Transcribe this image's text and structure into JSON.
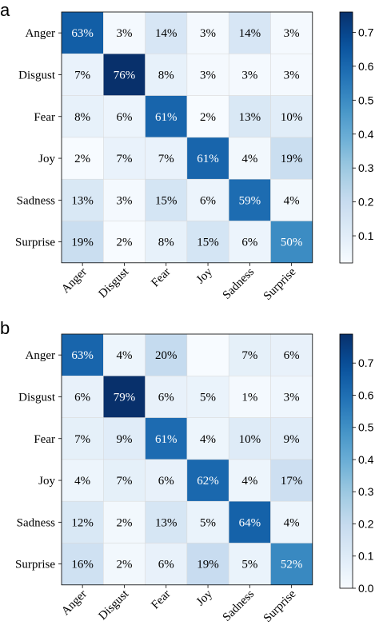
{
  "chart_data": [
    {
      "type": "heatmap",
      "panel_label": "a",
      "row_labels": [
        "Anger",
        "Disgust",
        "Fear",
        "Joy",
        "Sadness",
        "Surprise"
      ],
      "col_labels": [
        "Anger",
        "Disgust",
        "Fear",
        "Joy",
        "Sadness",
        "Surprise"
      ],
      "values": [
        [
          0.63,
          0.03,
          0.14,
          0.03,
          0.14,
          0.03
        ],
        [
          0.07,
          0.76,
          0.08,
          0.03,
          0.03,
          0.03
        ],
        [
          0.08,
          0.06,
          0.61,
          0.02,
          0.13,
          0.1
        ],
        [
          0.02,
          0.07,
          0.07,
          0.61,
          0.04,
          0.19
        ],
        [
          0.13,
          0.03,
          0.15,
          0.06,
          0.59,
          0.04
        ],
        [
          0.19,
          0.02,
          0.08,
          0.15,
          0.06,
          0.5
        ]
      ],
      "cell_labels": [
        [
          "63%",
          "3%",
          "14%",
          "3%",
          "14%",
          "3%"
        ],
        [
          "7%",
          "76%",
          "8%",
          "3%",
          "3%",
          "3%"
        ],
        [
          "8%",
          "6%",
          "61%",
          "2%",
          "13%",
          "10%"
        ],
        [
          "2%",
          "7%",
          "7%",
          "61%",
          "4%",
          "19%"
        ],
        [
          "13%",
          "3%",
          "15%",
          "6%",
          "59%",
          "4%"
        ],
        [
          "19%",
          "2%",
          "8%",
          "15%",
          "6%",
          "50%"
        ]
      ],
      "colorbar": {
        "min": 0.02,
        "max": 0.76,
        "ticks": [
          "0.1",
          "0.2",
          "0.3",
          "0.4",
          "0.5",
          "0.6",
          "0.7"
        ],
        "tick_values": [
          0.1,
          0.2,
          0.3,
          0.4,
          0.5,
          0.6,
          0.7
        ]
      },
      "colormap": "Blues"
    },
    {
      "type": "heatmap",
      "panel_label": "b",
      "row_labels": [
        "Anger",
        "Disgust",
        "Fear",
        "Joy",
        "Sadness",
        "Surprise"
      ],
      "col_labels": [
        "Anger",
        "Disgust",
        "Fear",
        "Joy",
        "Sadness",
        "Surprise"
      ],
      "values": [
        [
          0.63,
          0.04,
          0.2,
          0.0,
          0.07,
          0.06
        ],
        [
          0.06,
          0.79,
          0.06,
          0.05,
          0.01,
          0.03
        ],
        [
          0.07,
          0.09,
          0.61,
          0.04,
          0.1,
          0.09
        ],
        [
          0.04,
          0.07,
          0.06,
          0.62,
          0.04,
          0.17
        ],
        [
          0.12,
          0.02,
          0.13,
          0.05,
          0.64,
          0.04
        ],
        [
          0.16,
          0.02,
          0.06,
          0.19,
          0.05,
          0.52
        ]
      ],
      "cell_labels": [
        [
          "63%",
          "4%",
          "20%",
          "",
          "7%",
          "6%"
        ],
        [
          "6%",
          "79%",
          "6%",
          "5%",
          "1%",
          "3%"
        ],
        [
          "7%",
          "9%",
          "61%",
          "4%",
          "10%",
          "9%"
        ],
        [
          "4%",
          "7%",
          "6%",
          "62%",
          "4%",
          "17%"
        ],
        [
          "12%",
          "2%",
          "13%",
          "5%",
          "64%",
          "4%"
        ],
        [
          "16%",
          "2%",
          "6%",
          "19%",
          "5%",
          "52%"
        ]
      ],
      "colorbar": {
        "min": 0.0,
        "max": 0.79,
        "ticks": [
          "0.0",
          "0.1",
          "0.2",
          "0.3",
          "0.4",
          "0.5",
          "0.6",
          "0.7"
        ],
        "tick_values": [
          0.0,
          0.1,
          0.2,
          0.3,
          0.4,
          0.5,
          0.6,
          0.7
        ]
      },
      "colormap": "Blues"
    }
  ]
}
